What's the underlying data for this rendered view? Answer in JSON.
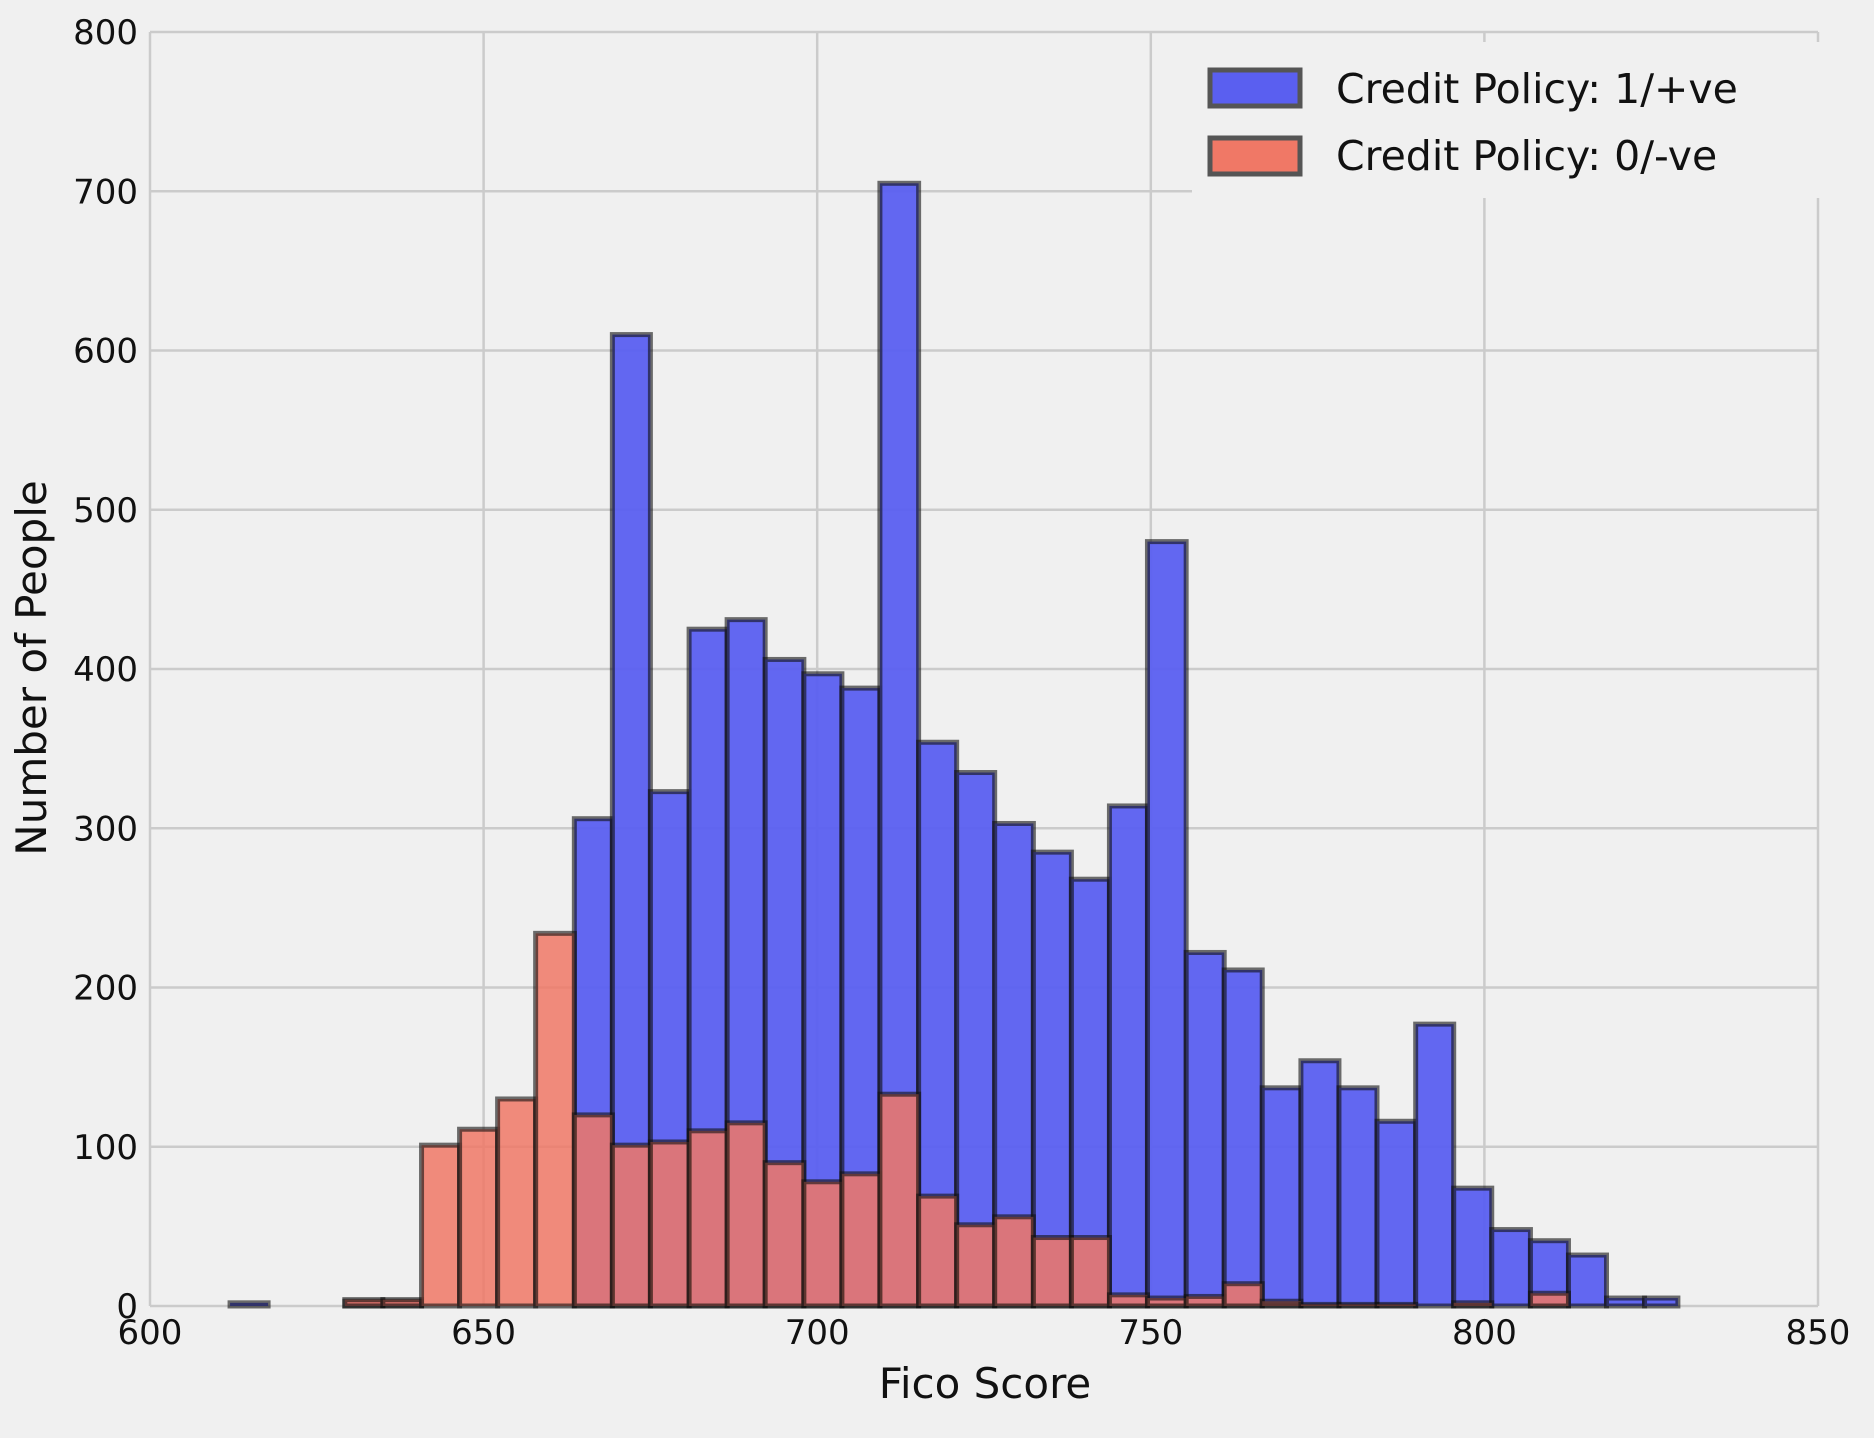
{
  "chart_data": {
    "type": "bar",
    "xlabel": "Fico Score",
    "ylabel": "Number of People",
    "xlim": [
      600,
      850
    ],
    "ylim": [
      0,
      800
    ],
    "xticks": [
      600,
      650,
      700,
      750,
      800,
      850
    ],
    "yticks": [
      0,
      100,
      200,
      300,
      400,
      500,
      600,
      700,
      800
    ],
    "grid": true,
    "legend_position": "top-right",
    "series": [
      {
        "name": "Credit Policy: 1/+ve",
        "color": "#5a5ff0",
        "bins": [
          {
            "x0": 612.0,
            "x1": 617.7,
            "value": 2
          },
          {
            "x0": 617.7,
            "x1": 623.5,
            "value": 0
          },
          {
            "x0": 623.5,
            "x1": 629.2,
            "value": 0
          },
          {
            "x0": 629.2,
            "x1": 634.9,
            "value": 3
          },
          {
            "x0": 634.9,
            "x1": 640.7,
            "value": 3
          },
          {
            "x0": 640.7,
            "x1": 646.4,
            "value": 0
          },
          {
            "x0": 646.4,
            "x1": 652.1,
            "value": 0
          },
          {
            "x0": 652.1,
            "x1": 657.8,
            "value": 0
          },
          {
            "x0": 657.8,
            "x1": 663.6,
            "value": 0
          },
          {
            "x0": 663.6,
            "x1": 669.3,
            "value": 306
          },
          {
            "x0": 669.3,
            "x1": 675.0,
            "value": 610
          },
          {
            "x0": 675.0,
            "x1": 680.8,
            "value": 323
          },
          {
            "x0": 680.8,
            "x1": 686.5,
            "value": 425
          },
          {
            "x0": 686.5,
            "x1": 692.2,
            "value": 431
          },
          {
            "x0": 692.2,
            "x1": 698.0,
            "value": 406
          },
          {
            "x0": 698.0,
            "x1": 703.7,
            "value": 397
          },
          {
            "x0": 703.7,
            "x1": 709.4,
            "value": 388
          },
          {
            "x0": 709.4,
            "x1": 715.2,
            "value": 705
          },
          {
            "x0": 715.2,
            "x1": 720.9,
            "value": 354
          },
          {
            "x0": 720.9,
            "x1": 726.6,
            "value": 335
          },
          {
            "x0": 726.6,
            "x1": 732.4,
            "value": 303
          },
          {
            "x0": 732.4,
            "x1": 738.1,
            "value": 285
          },
          {
            "x0": 738.1,
            "x1": 743.8,
            "value": 268
          },
          {
            "x0": 743.8,
            "x1": 749.5,
            "value": 314
          },
          {
            "x0": 749.5,
            "x1": 755.3,
            "value": 480
          },
          {
            "x0": 755.3,
            "x1": 761.0,
            "value": 222
          },
          {
            "x0": 761.0,
            "x1": 766.7,
            "value": 211
          },
          {
            "x0": 766.7,
            "x1": 772.5,
            "value": 137
          },
          {
            "x0": 772.5,
            "x1": 778.2,
            "value": 154
          },
          {
            "x0": 778.2,
            "x1": 783.9,
            "value": 137
          },
          {
            "x0": 783.9,
            "x1": 789.7,
            "value": 116
          },
          {
            "x0": 789.7,
            "x1": 795.4,
            "value": 177
          },
          {
            "x0": 795.4,
            "x1": 801.1,
            "value": 74
          },
          {
            "x0": 801.1,
            "x1": 806.9,
            "value": 48
          },
          {
            "x0": 806.9,
            "x1": 812.6,
            "value": 41
          },
          {
            "x0": 812.6,
            "x1": 818.3,
            "value": 32
          },
          {
            "x0": 818.3,
            "x1": 824.0,
            "value": 5
          },
          {
            "x0": 824.0,
            "x1": 829.0,
            "value": 5
          }
        ]
      },
      {
        "name": "Credit Policy: 0/-ve",
        "color": "#f07866",
        "bins": [
          {
            "x0": 629.2,
            "x1": 634.9,
            "value": 4
          },
          {
            "x0": 634.9,
            "x1": 640.7,
            "value": 4
          },
          {
            "x0": 640.7,
            "x1": 646.4,
            "value": 101
          },
          {
            "x0": 646.4,
            "x1": 652.1,
            "value": 111
          },
          {
            "x0": 652.1,
            "x1": 657.8,
            "value": 130
          },
          {
            "x0": 657.8,
            "x1": 663.6,
            "value": 234
          },
          {
            "x0": 663.6,
            "x1": 669.3,
            "value": 120
          },
          {
            "x0": 669.3,
            "x1": 675.0,
            "value": 101
          },
          {
            "x0": 675.0,
            "x1": 680.8,
            "value": 103
          },
          {
            "x0": 680.8,
            "x1": 686.5,
            "value": 110
          },
          {
            "x0": 686.5,
            "x1": 692.2,
            "value": 115
          },
          {
            "x0": 692.2,
            "x1": 698.0,
            "value": 90
          },
          {
            "x0": 698.0,
            "x1": 703.7,
            "value": 78
          },
          {
            "x0": 703.7,
            "x1": 709.4,
            "value": 83
          },
          {
            "x0": 709.4,
            "x1": 715.2,
            "value": 133
          },
          {
            "x0": 715.2,
            "x1": 720.9,
            "value": 69
          },
          {
            "x0": 720.9,
            "x1": 726.6,
            "value": 51
          },
          {
            "x0": 726.6,
            "x1": 732.4,
            "value": 56
          },
          {
            "x0": 732.4,
            "x1": 738.1,
            "value": 43
          },
          {
            "x0": 738.1,
            "x1": 743.8,
            "value": 43
          },
          {
            "x0": 743.8,
            "x1": 749.5,
            "value": 7
          },
          {
            "x0": 749.5,
            "x1": 755.3,
            "value": 5
          },
          {
            "x0": 755.3,
            "x1": 761.0,
            "value": 6
          },
          {
            "x0": 761.0,
            "x1": 766.7,
            "value": 14
          },
          {
            "x0": 766.7,
            "x1": 772.5,
            "value": 3
          },
          {
            "x0": 772.5,
            "x1": 778.2,
            "value": 1
          },
          {
            "x0": 778.2,
            "x1": 783.9,
            "value": 1
          },
          {
            "x0": 783.9,
            "x1": 789.7,
            "value": 1
          },
          {
            "x0": 795.4,
            "x1": 801.1,
            "value": 2
          },
          {
            "x0": 806.9,
            "x1": 812.6,
            "value": 8
          }
        ]
      }
    ]
  }
}
